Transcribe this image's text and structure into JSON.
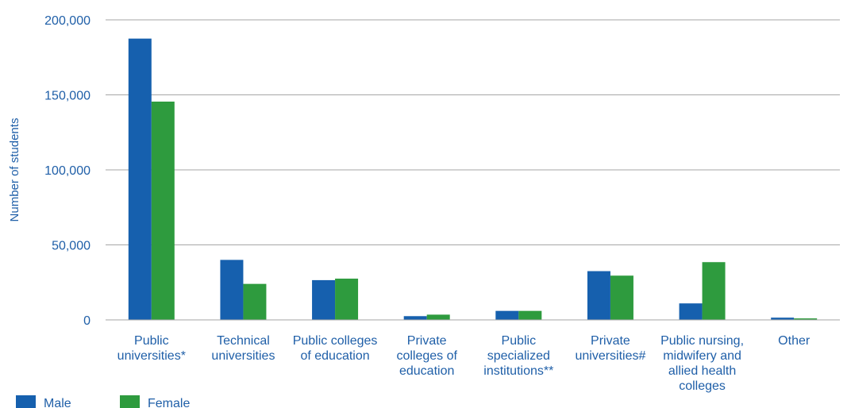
{
  "chart_data": {
    "type": "bar",
    "ylabel": "Number of students",
    "xlabel": "",
    "ylim": [
      0,
      200000
    ],
    "yticks": [
      0,
      50000,
      100000,
      150000,
      200000
    ],
    "ytick_labels": [
      "0",
      "50,000",
      "100,000",
      "150,000",
      "200,000"
    ],
    "grid": true,
    "legend_position": "bottom-left",
    "categories": [
      [
        "Public",
        "universities*"
      ],
      [
        "Technical",
        "universities"
      ],
      [
        "Public colleges",
        "of education"
      ],
      [
        "Private",
        "colleges of",
        "education"
      ],
      [
        "Public",
        "specialized",
        "institutions**"
      ],
      [
        "Private",
        "universities#"
      ],
      [
        "Public nursing,",
        "midwifery and",
        "allied health",
        "colleges"
      ],
      [
        "Other"
      ]
    ],
    "series": [
      {
        "name": "Male",
        "color": "#1660ae",
        "values": [
          187500,
          40000,
          26500,
          2500,
          6000,
          32500,
          11000,
          1500
        ]
      },
      {
        "name": "Female",
        "color": "#2e9b3e",
        "values": [
          145500,
          24000,
          27500,
          3500,
          6000,
          29500,
          38500,
          1000
        ]
      }
    ]
  }
}
